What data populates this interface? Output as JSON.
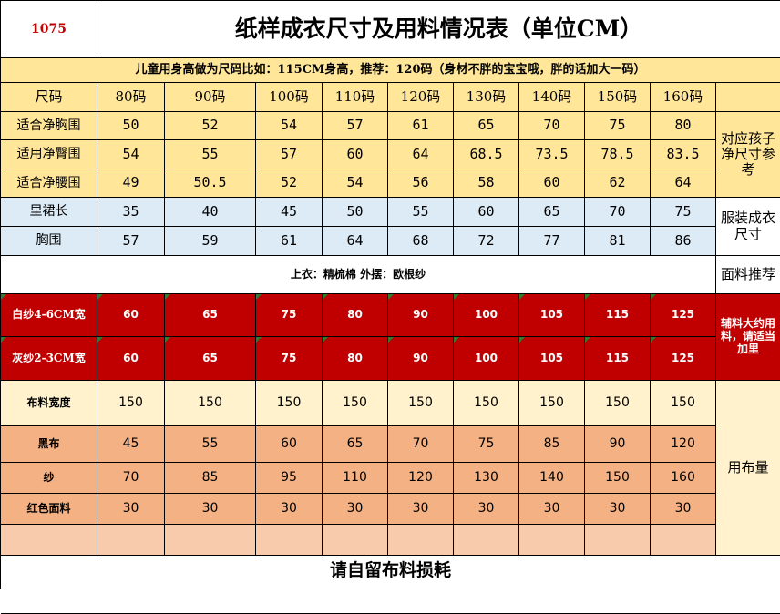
{
  "code": "1075",
  "title": "纸样成衣尺寸及用料情况表（单位CM）",
  "note": "儿童用身高做为尺码比如：115CM身高，推荐：120码（身材不胖的宝宝哦，胖的话加大一码）",
  "header_label": "尺码",
  "sizes": [
    "80码",
    "90码",
    "100码",
    "110码",
    "120码",
    "130码",
    "140码",
    "150码",
    "160码"
  ],
  "body_rows": [
    {
      "label": "适合净胸围",
      "values": [
        "50",
        "52",
        "54",
        "57",
        "61",
        "65",
        "70",
        "75",
        "80"
      ]
    },
    {
      "label": "适用净臀围",
      "values": [
        "54",
        "55",
        "57",
        "60",
        "64",
        "68.5",
        "73.5",
        "78.5",
        "83.5"
      ]
    },
    {
      "label": "适合净腰围",
      "values": [
        "49",
        "50.5",
        "52",
        "54",
        "56",
        "58",
        "60",
        "62",
        "64"
      ]
    }
  ],
  "body_side": "对应孩子净尺寸参考",
  "garment_rows": [
    {
      "label": "里裙长",
      "values": [
        "35",
        "40",
        "45",
        "50",
        "55",
        "60",
        "65",
        "70",
        "75"
      ]
    },
    {
      "label": "胸围",
      "values": [
        "57",
        "59",
        "61",
        "64",
        "68",
        "72",
        "77",
        "81",
        "86"
      ]
    }
  ],
  "garment_side": "服装成衣尺寸",
  "fabric_text": "上衣：精梳棉 外摆：欧根纱",
  "fabric_side": "面料推荐",
  "aux_rows": [
    {
      "label": "白纱4-6CM宽",
      "values": [
        "60",
        "65",
        "75",
        "80",
        "90",
        "100",
        "105",
        "115",
        "125"
      ]
    },
    {
      "label": "灰纱2-3CM宽",
      "values": [
        "60",
        "65",
        "75",
        "80",
        "90",
        "100",
        "105",
        "115",
        "125"
      ]
    }
  ],
  "aux_side": "辅料大约用料，请适当加里",
  "width_row": {
    "label": "布料宽度",
    "values": [
      "150",
      "150",
      "150",
      "150",
      "150",
      "150",
      "150",
      "150",
      "150"
    ]
  },
  "usage_rows": [
    {
      "label": "黑布",
      "values": [
        "45",
        "55",
        "60",
        "65",
        "70",
        "75",
        "85",
        "90",
        "120"
      ]
    },
    {
      "label": "纱",
      "values": [
        "70",
        "85",
        "95",
        "110",
        "120",
        "130",
        "140",
        "150",
        "160"
      ]
    },
    {
      "label": "红色面料",
      "values": [
        "30",
        "30",
        "30",
        "30",
        "30",
        "30",
        "30",
        "30",
        "30"
      ]
    }
  ],
  "usage_side": "用布量",
  "footer": "请自留布料损耗",
  "colors": {
    "yellow": "#ffe699",
    "blue": "#ddebf7",
    "red": "#c00000",
    "cream": "#fff2cc",
    "orange": "#f4b183",
    "peach": "#f8cbad",
    "code_red": "#c00000"
  }
}
